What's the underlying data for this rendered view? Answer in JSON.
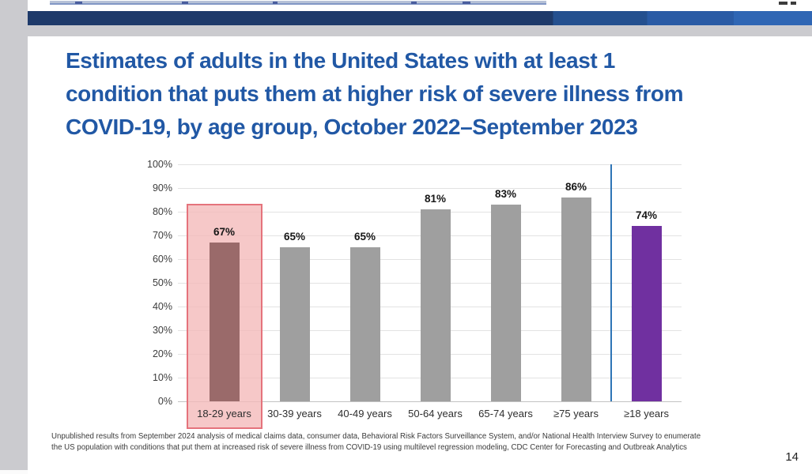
{
  "slide": {
    "title_lines": [
      "Estimates of adults in the United States with at least 1",
      "condition that puts them at higher risk of severe illness from",
      "COVID-19, by age group, October 2022–September 2023"
    ],
    "footnote_lines": [
      "Unpublished results from September 2024 analysis of medical claims data, consumer data, Behavioral Risk Factors Surveillance System, and/or National Health Interview Survey to enumerate",
      "the US population with conditions that put them at increased risk of severe illness from COVID-19 using multilevel regression modeling, CDC Center for Forecasting and Outbreak Analytics"
    ],
    "page_number": "14"
  },
  "colors": {
    "title_blue": "#2158a5",
    "bar_gray": "#9f9f9f",
    "bar_highlight_mauve": "#9a6a6a",
    "bar_total_purple": "#7030a0",
    "highlight_box_fill": "#f4baba",
    "highlight_box_border": "#e5737c",
    "divider_blue": "#2e75b6",
    "top_bar_navy": "#1e3a6a",
    "top_bar_light_blue": "#2f66b4"
  },
  "chart_data": {
    "type": "bar",
    "title": "",
    "xlabel": "",
    "ylabel": "",
    "categories": [
      "18-29 years",
      "30-39 years",
      "40-49 years",
      "50-64 years",
      "65-74 years",
      "≥75 years",
      "≥18 years"
    ],
    "values": [
      67,
      65,
      65,
      81,
      83,
      86,
      74
    ],
    "value_label_suffix": "%",
    "ylim": [
      0,
      100
    ],
    "ytick_step": 10,
    "ytick_suffix": "%",
    "grid": true,
    "legend": "none",
    "highlighted_category": "18-29 years",
    "summary_category": "≥18 years",
    "summary_separated_by_divider": true
  }
}
